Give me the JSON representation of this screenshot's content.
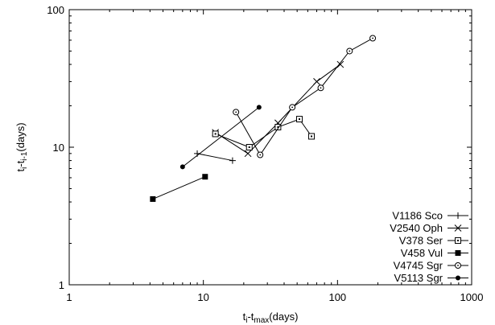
{
  "chart_data": {
    "type": "scatter",
    "x_scale": "log",
    "y_scale": "log",
    "xlim": [
      1,
      1000
    ],
    "ylim": [
      1,
      100
    ],
    "x_ticks": [
      {
        "value": 1,
        "label": "1"
      },
      {
        "value": 10,
        "label": "10"
      },
      {
        "value": 100,
        "label": "100"
      },
      {
        "value": 1000,
        "label": "1000"
      }
    ],
    "y_ticks": [
      {
        "value": 1,
        "label": "1"
      },
      {
        "value": 10,
        "label": "10"
      },
      {
        "value": 100,
        "label": "100"
      }
    ],
    "xlabel": {
      "main": "t",
      "sub1": "i",
      "mid": "-t",
      "sub2": "max",
      "tail": "(days)"
    },
    "ylabel": {
      "main": "t",
      "sub1": "i",
      "mid": "-t",
      "sub2": "i-1",
      "tail": "(days)"
    },
    "grid": false,
    "legend_position": "bottom-right",
    "series": [
      {
        "name": "V1186 Sco",
        "marker": "plus",
        "points": [
          [
            9,
            9
          ],
          [
            16.5,
            8
          ]
        ]
      },
      {
        "name": "V2540 Oph",
        "marker": "cross",
        "points": [
          [
            12.3,
            12.8
          ],
          [
            21.5,
            9
          ],
          [
            36,
            15
          ],
          [
            70,
            30
          ],
          [
            105,
            40
          ]
        ]
      },
      {
        "name": "V378 Ser",
        "marker": "square-open",
        "points": [
          [
            12.3,
            12.5
          ],
          [
            22,
            10
          ],
          [
            36,
            14
          ],
          [
            52,
            16
          ],
          [
            64,
            12
          ]
        ]
      },
      {
        "name": "V458 Vul",
        "marker": "square-filled",
        "points": [
          [
            4.2,
            4.2
          ],
          [
            10.3,
            6.1
          ]
        ]
      },
      {
        "name": "V4745 Sgr",
        "marker": "circle-open",
        "points": [
          [
            17.5,
            18
          ],
          [
            26.5,
            8.8
          ],
          [
            46,
            19.5
          ],
          [
            75,
            27
          ],
          [
            123,
            50
          ],
          [
            183,
            62
          ]
        ]
      },
      {
        "name": "V5113 Sgr",
        "marker": "circle-filled",
        "points": [
          [
            7,
            7.2
          ],
          [
            26,
            19.5
          ]
        ]
      }
    ]
  }
}
